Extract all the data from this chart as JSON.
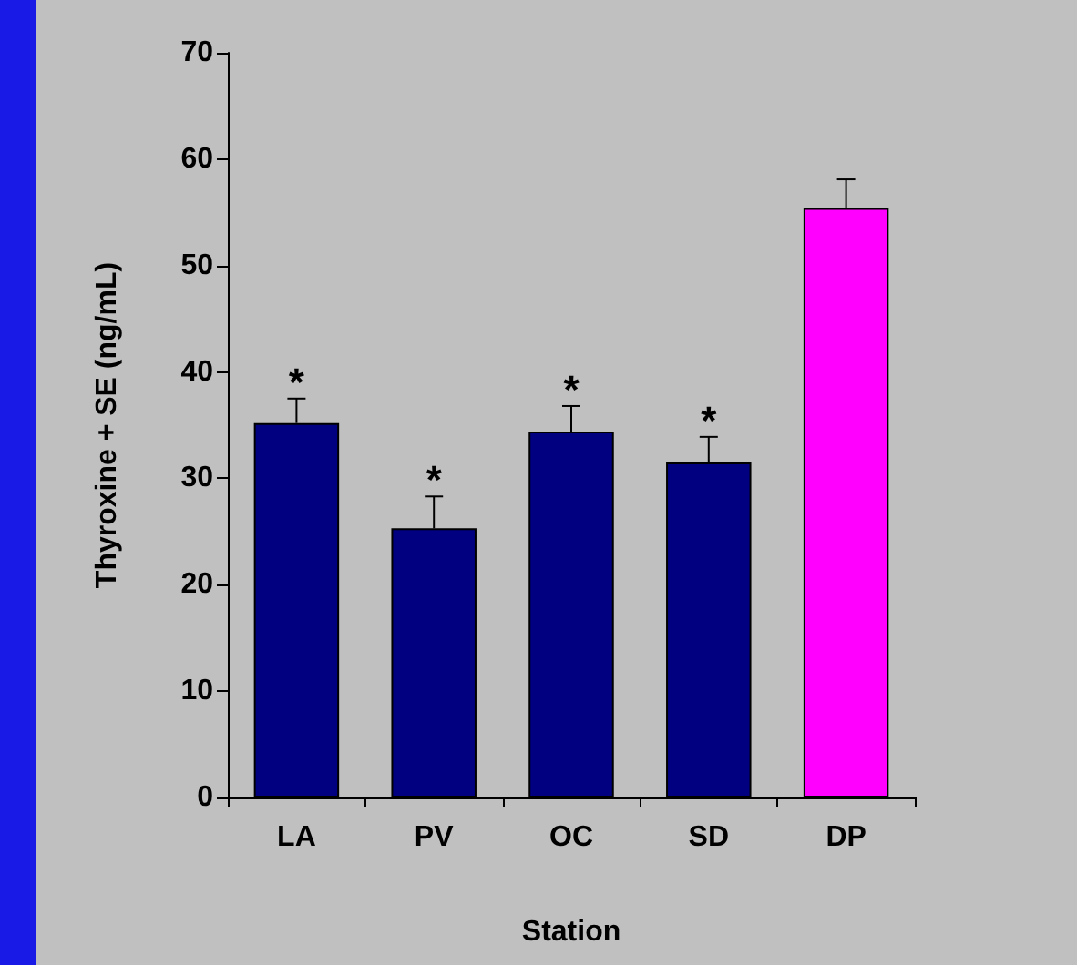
{
  "chart_data": {
    "type": "bar",
    "xlabel": "Station",
    "ylabel": "Thyroxine + SE (ng/mL)",
    "categories": [
      "LA",
      "PV",
      "OC",
      "SD",
      "DP"
    ],
    "values": [
      35.2,
      25.3,
      34.4,
      31.5,
      55.4
    ],
    "colors": [
      "#000080",
      "#000080",
      "#000080",
      "#000080",
      "#ff00ff"
    ],
    "errors": [
      [
        35.2,
        37.5
      ],
      [
        25.3,
        28.3
      ],
      [
        34.4,
        36.8
      ],
      [
        31.5,
        33.9
      ],
      [
        55.4,
        58.1
      ]
    ],
    "ylim": [
      0,
      70
    ],
    "yticks": [
      0,
      10,
      20,
      30,
      40,
      50,
      60,
      70
    ],
    "grid": false,
    "annotations": [
      {
        "text": "*",
        "x": "LA",
        "y": 37.5
      },
      {
        "text": "*",
        "x": "PV",
        "y": 28.3
      },
      {
        "text": "*",
        "x": "OC",
        "y": 36.8
      },
      {
        "text": "*",
        "x": "SD",
        "y": 33.9
      }
    ]
  }
}
